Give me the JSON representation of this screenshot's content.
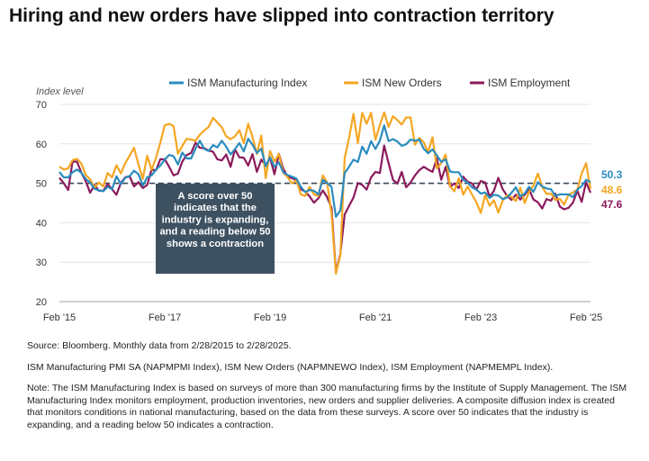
{
  "page": {
    "title": "Hiring and new orders have slipped into contraction territory",
    "source": "Source: Bloomberg. Monthly data from 2/28/2015 to 2/28/2025.",
    "series_note": "ISM Manufacturing PMI SA (NAPMPMI Index), ISM New Orders (NAPMNEWO Index), ISM Employment (NAPMEMPL Index).",
    "note": "Note: The ISM Manufacturing Index is based on surveys of more than 300 manufacturing firms by the Institute of Supply Management. The ISM Manufacturing Index monitors employment, production inventories, new orders and supplier deliveries. A composite diffusion index is created that monitors conditions in national manufacturing, based on the data from these surveys. A score over 50 indicates that the industry is expanding, and a reading below 50 indicates a contraction."
  },
  "chart_data": {
    "type": "line",
    "ylabel": "Index level",
    "ylim": [
      20,
      70
    ],
    "yticks": [
      20,
      30,
      40,
      50,
      60,
      70
    ],
    "x_start": "Feb '15",
    "x_end": "Feb '25",
    "xticks": [
      {
        "month_index": 0,
        "label": "Feb '15"
      },
      {
        "month_index": 24,
        "label": "Feb '17"
      },
      {
        "month_index": 48,
        "label": "Feb '19"
      },
      {
        "month_index": 72,
        "label": "Feb '21"
      },
      {
        "month_index": 96,
        "label": "Feb '23"
      },
      {
        "month_index": 120,
        "label": "Feb '25"
      }
    ],
    "reference_line": 50,
    "annotation": "A score over 50 indicates that the industry is expanding, and a reading below 50 shows a contraction",
    "legend_position": "top",
    "series": [
      {
        "name": "ISM Manufacturing Index",
        "color": "#2b8cbe",
        "end_label": "50.3",
        "values": [
          52.9,
          51.5,
          51.5,
          52.8,
          53.5,
          52.7,
          51.1,
          50.2,
          48.6,
          48.2,
          48.0,
          49.1,
          48.5,
          51.8,
          49.8,
          51.4,
          51.8,
          53.2,
          52.3,
          49.4,
          51.5,
          52.0,
          53.5,
          54.5,
          56.0,
          57.2,
          56.9,
          54.8,
          57.8,
          56.3,
          56.3,
          58.8,
          60.8,
          58.7,
          58.2,
          59.7,
          59.1,
          60.8,
          59.3,
          57.3,
          58.7,
          60.2,
          58.1,
          61.3,
          59.8,
          57.7,
          58.8,
          54.3,
          56.6,
          54.2,
          55.3,
          52.8,
          52.1,
          51.7,
          51.2,
          49.1,
          47.8,
          48.3,
          48.1,
          47.2,
          50.9,
          50.1,
          49.1,
          41.5,
          43.1,
          52.6,
          54.2,
          56.0,
          55.4,
          59.3,
          57.5,
          60.7,
          58.7,
          60.8,
          64.7,
          60.7,
          61.2,
          60.6,
          59.5,
          59.9,
          61.1,
          60.8,
          61.1,
          58.8,
          57.6,
          58.6,
          57.1,
          55.4,
          56.1,
          53.0,
          52.8,
          52.8,
          50.9,
          50.2,
          49.0,
          48.4,
          47.4,
          47.7,
          46.3,
          47.1,
          46.9,
          46.0,
          46.4,
          47.6,
          49.0,
          46.7,
          47.4,
          49.1,
          47.8,
          50.3,
          49.2,
          48.7,
          48.5,
          46.8,
          47.2,
          47.2,
          47.2,
          46.5,
          48.4,
          49.3,
          50.9,
          50.3
        ]
      },
      {
        "name": "ISM New Orders",
        "color": "#f5a623",
        "end_label": "48.6",
        "values": [
          54.2,
          53.5,
          53.8,
          55.9,
          56.2,
          55.0,
          52.1,
          51.0,
          48.9,
          50.2,
          49.2,
          52.6,
          51.5,
          54.6,
          52.5,
          55.1,
          57.0,
          59.0,
          54.8,
          51.1,
          57.0,
          53.4,
          56.5,
          60.3,
          64.7,
          65.1,
          64.5,
          57.5,
          59.5,
          61.3,
          61.1,
          60.8,
          62.3,
          63.4,
          64.3,
          66.6,
          65.4,
          64.2,
          61.9,
          61.2,
          61.9,
          63.5,
          60.2,
          65.1,
          61.8,
          57.4,
          62.1,
          51.3,
          58.2,
          55.5,
          57.4,
          52.7,
          51.5,
          50.0,
          50.8,
          47.2,
          46.8,
          49.1,
          47.2,
          46.8,
          52.0,
          50.3,
          42.2,
          27.1,
          31.8,
          56.4,
          61.5,
          67.6,
          60.2,
          67.9,
          65.1,
          67.9,
          61.1,
          64.8,
          68.0,
          64.3,
          67.0,
          66.0,
          64.9,
          66.7,
          66.7,
          59.8,
          61.5,
          60.4,
          57.9,
          61.7,
          53.8,
          55.1,
          57.3,
          49.2,
          48.0,
          51.3,
          47.1,
          49.2,
          47.2,
          45.2,
          42.5,
          47.0,
          44.3,
          45.7,
          42.6,
          45.6,
          47.0,
          46.5,
          45.5,
          48.9,
          45.0,
          47.8,
          49.4,
          52.5,
          49.1,
          47.3,
          47.4,
          45.8,
          46.1,
          44.6,
          47.1,
          47.7,
          48.4,
          52.5,
          55.1,
          48.6
        ]
      },
      {
        "name": "ISM Employment",
        "color": "#8b1a5c",
        "end_label": "47.6",
        "values": [
          51.4,
          50.0,
          48.3,
          55.5,
          55.5,
          52.7,
          50.5,
          47.6,
          49.6,
          48.1,
          48.1,
          49.8,
          48.5,
          47.1,
          50.1,
          51.5,
          51.8,
          49.2,
          50.3,
          48.8,
          49.6,
          53.5,
          53.3,
          56.1,
          56.1,
          54.2,
          52.0,
          52.5,
          55.5,
          57.2,
          57.7,
          60.3,
          59.0,
          58.9,
          58.3,
          58.0,
          56.1,
          55.8,
          57.3,
          54.2,
          58.6,
          56.6,
          56.5,
          54.5,
          57.4,
          52.9,
          56.0,
          54.5,
          56.5,
          52.3,
          57.5,
          53.7,
          51.7,
          51.3,
          50.8,
          48.5,
          47.9,
          46.7,
          45.1,
          46.2,
          48.2,
          46.5,
          43.8,
          27.5,
          32.1,
          42.1,
          44.3,
          46.4,
          50.1,
          49.6,
          48.4,
          51.5,
          52.9,
          52.6,
          59.6,
          55.1,
          50.9,
          49.9,
          52.9,
          49.0,
          50.2,
          52.0,
          53.3,
          54.2,
          53.5,
          52.9,
          56.3,
          50.9,
          54.2,
          49.1,
          50.0,
          48.8,
          51.7,
          50.4,
          50.0,
          48.4,
          50.6,
          50.2,
          46.6,
          48.1,
          51.4,
          48.5,
          46.8,
          45.8,
          47.1,
          45.9,
          47.1,
          48.6,
          45.9,
          45.2,
          43.6,
          46.0,
          45.6,
          47.4,
          44.1,
          43.4,
          43.8,
          45.1,
          48.1,
          45.3,
          50.3,
          47.6
        ]
      }
    ]
  }
}
